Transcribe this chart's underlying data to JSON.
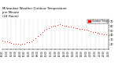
{
  "title": "Milwaukee Weather Outdoor Temperature\nper Minute\n(24 Hours)",
  "title_fontsize": 2.8,
  "line_color": "#ff0000",
  "bg_color": "#ffffff",
  "ylim": [
    10,
    75
  ],
  "yticks": [
    20,
    30,
    40,
    50,
    60,
    70
  ],
  "ytick_fontsize": 2.5,
  "xtick_fontsize": 2.0,
  "legend_label": "Outdoor Temp",
  "x_minutes": [
    0,
    30,
    60,
    90,
    120,
    150,
    180,
    210,
    240,
    270,
    300,
    330,
    360,
    390,
    420,
    450,
    480,
    510,
    540,
    570,
    600,
    630,
    660,
    690,
    720,
    750,
    780,
    810,
    840,
    870,
    900,
    930,
    960,
    990,
    1020,
    1050,
    1080,
    1110,
    1140,
    1170,
    1200,
    1230,
    1260,
    1290,
    1320,
    1350,
    1380,
    1410,
    1440
  ],
  "y_temps": [
    28,
    27,
    26,
    24,
    23,
    22,
    22,
    21,
    20,
    21,
    22,
    24,
    25,
    27,
    30,
    34,
    38,
    42,
    46,
    50,
    53,
    56,
    58,
    60,
    61,
    62,
    63,
    62,
    61,
    60,
    59,
    58,
    57,
    56,
    55,
    54,
    53,
    52,
    51,
    50,
    48,
    47,
    46,
    45,
    44,
    43,
    42,
    41,
    40
  ]
}
